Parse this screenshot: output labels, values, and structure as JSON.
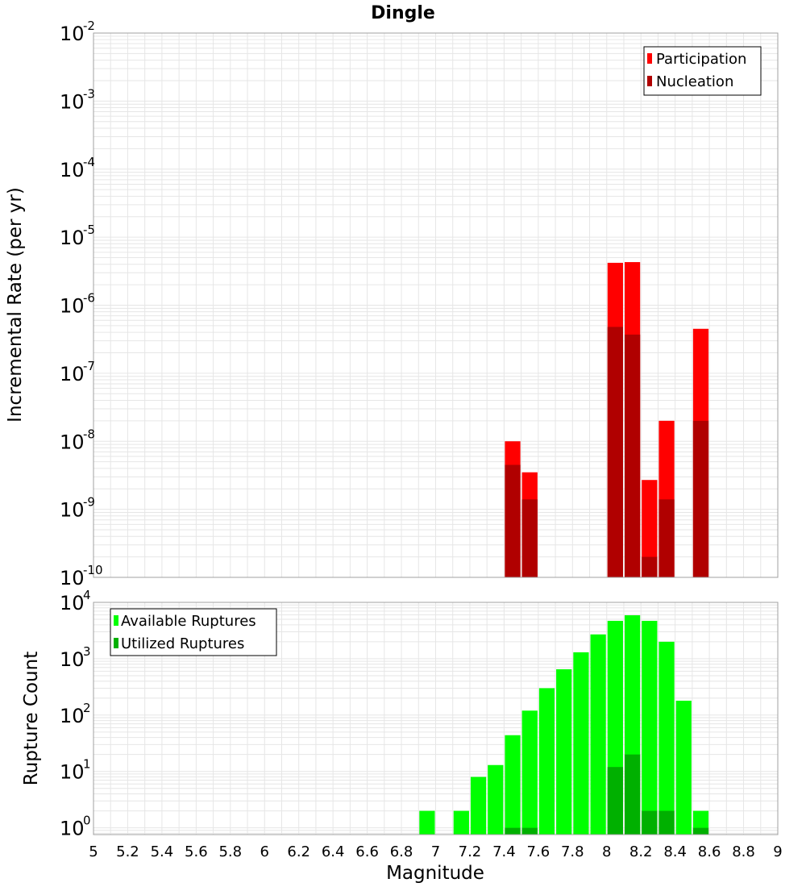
{
  "title": "Dingle",
  "xlabel": "Magnitude",
  "colors": {
    "participation": "#ff0000",
    "nucleation": "#b00000",
    "available": "#00ff00",
    "utilized": "#00b000",
    "grid": "#e6e6e6",
    "frame": "#a0a0a0"
  },
  "chart_data": [
    {
      "type": "bar",
      "ylabel": "Incremental Rate (per yr)",
      "yscale": "log",
      "ylim_exponents": [
        -10,
        -2
      ],
      "xlim": [
        5,
        9
      ],
      "bin_width": 0.1,
      "legend_position": "top-right",
      "series": [
        {
          "name": "Participation",
          "x": [
            7.45,
            7.55,
            8.05,
            8.15,
            8.25,
            8.35,
            8.55
          ],
          "values": [
            1e-08,
            3.5e-09,
            4.2e-06,
            4.3e-06,
            2.7e-09,
            2e-08,
            4.5e-07
          ]
        },
        {
          "name": "Nucleation",
          "x": [
            7.45,
            7.55,
            8.05,
            8.15,
            8.25,
            8.35,
            8.55
          ],
          "values": [
            4.5e-09,
            1.4e-09,
            4.8e-07,
            3.7e-07,
            2e-10,
            1.4e-09,
            2e-08
          ]
        }
      ]
    },
    {
      "type": "bar",
      "ylabel": "Rupture Count",
      "yscale": "log",
      "ylim_exponents": [
        -0.12,
        4
      ],
      "xlim": [
        5,
        9
      ],
      "bin_width": 0.1,
      "legend_position": "top-left",
      "xticks": [
        "5",
        "5.2",
        "5.4",
        "5.6",
        "5.8",
        "6",
        "6.2",
        "6.4",
        "6.6",
        "6.8",
        "7",
        "7.2",
        "7.4",
        "7.6",
        "7.8",
        "8",
        "8.2",
        "8.4",
        "8.6",
        "8.8",
        "9"
      ],
      "series": [
        {
          "name": "Available Ruptures",
          "x": [
            6.95,
            7.15,
            7.25,
            7.35,
            7.45,
            7.55,
            7.65,
            7.75,
            7.85,
            7.95,
            8.05,
            8.15,
            8.25,
            8.35,
            8.45,
            8.55
          ],
          "values": [
            2,
            2,
            8,
            13,
            44,
            120,
            300,
            650,
            1300,
            2700,
            4700,
            5900,
            4700,
            2000,
            180,
            2
          ]
        },
        {
          "name": "Utilized Ruptures",
          "x": [
            7.45,
            7.55,
            8.05,
            8.15,
            8.25,
            8.35,
            8.55
          ],
          "values": [
            1,
            1,
            12,
            20,
            2,
            2,
            1
          ]
        }
      ]
    }
  ]
}
